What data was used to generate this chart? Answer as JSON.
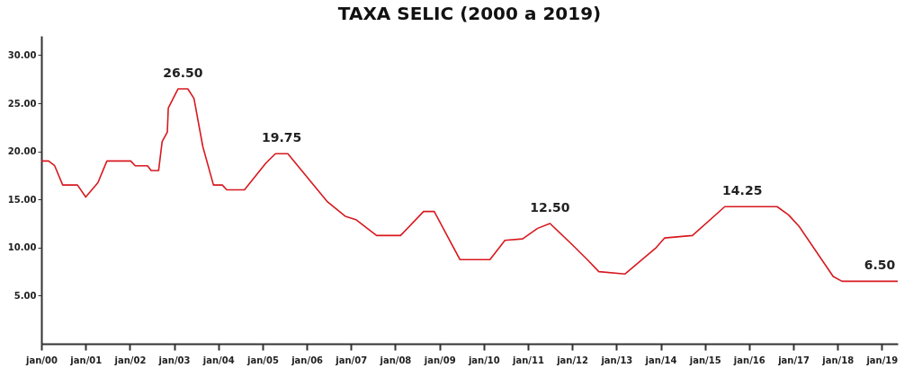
{
  "chart_data": {
    "type": "line",
    "title": "TAXA SELIC (2000 a 2019)",
    "x": [
      "2000-01-01",
      "2000-03-01",
      "2000-04-20",
      "2000-06-25",
      "2000-10-25",
      "2001-01-01",
      "2001-04-12",
      "2001-06-25",
      "2002-01-08",
      "2002-02-14",
      "2002-05-27",
      "2002-06-25",
      "2002-08-26",
      "2002-09-24",
      "2002-11-06",
      "2002-11-14",
      "2003-02-03",
      "2003-04-24",
      "2003-06-14",
      "2003-08-26",
      "2003-11-22",
      "2004-02-03",
      "2004-03-11",
      "2004-08-04",
      "2005-01-26",
      "2005-04-16",
      "2005-07-28",
      "2006-06-21",
      "2006-11-14",
      "2007-02-10",
      "2007-07-31",
      "2008-02-14",
      "2008-08-22",
      "2008-11-18",
      "2009-06-18",
      "2010-02-21",
      "2010-06-25",
      "2010-11-18",
      "2011-03-22",
      "2011-07-02",
      "2011-12-24",
      "2012-05-05",
      "2012-08-08",
      "2013-03-11",
      "2013-11-25",
      "2014-02-03",
      "2014-09-20",
      "2015-06-14",
      "2016-08-19",
      "2016-11-21",
      "2017-02-17",
      "2017-11-25",
      "2018-02-06",
      "2019-05-12"
    ],
    "series": [
      {
        "color": "#d7191f",
        "values": [
          19.0,
          19.0,
          18.5,
          16.5,
          16.5,
          15.25,
          16.75,
          19.0,
          19.0,
          18.5,
          18.5,
          18.0,
          18.0,
          21.0,
          22.0,
          24.5,
          26.5,
          26.5,
          25.5,
          20.5,
          16.5,
          16.5,
          16.0,
          16.0,
          18.75,
          19.75,
          19.75,
          14.75,
          13.25,
          12.9,
          11.25,
          11.25,
          13.75,
          13.75,
          8.75,
          8.75,
          10.75,
          10.9,
          12.0,
          12.5,
          10.4,
          8.75,
          7.5,
          7.25,
          10.0,
          11.0,
          11.25,
          14.25,
          14.25,
          13.4,
          12.2,
          7.0,
          6.5,
          6.5
        ]
      }
    ],
    "xlim": [
      "2000-01-01",
      "2019-05-12"
    ],
    "ylim": [
      0,
      32
    ],
    "xticks": [
      {
        "value": "2000-01-01",
        "label": "jan/00"
      },
      {
        "value": "2001-01-01",
        "label": "jan/01"
      },
      {
        "value": "2002-01-01",
        "label": "jan/02"
      },
      {
        "value": "2003-01-01",
        "label": "jan/03"
      },
      {
        "value": "2004-01-01",
        "label": "jan/04"
      },
      {
        "value": "2005-01-01",
        "label": "jan/05"
      },
      {
        "value": "2006-01-01",
        "label": "jan/06"
      },
      {
        "value": "2007-01-01",
        "label": "jan/07"
      },
      {
        "value": "2008-01-01",
        "label": "jan/08"
      },
      {
        "value": "2009-01-01",
        "label": "jan/09"
      },
      {
        "value": "2010-01-01",
        "label": "jan/10"
      },
      {
        "value": "2011-01-01",
        "label": "jan/11"
      },
      {
        "value": "2012-01-01",
        "label": "jan/12"
      },
      {
        "value": "2013-01-01",
        "label": "jan/13"
      },
      {
        "value": "2014-01-01",
        "label": "jan/14"
      },
      {
        "value": "2015-01-01",
        "label": "jan/15"
      },
      {
        "value": "2016-01-01",
        "label": "jan/16"
      },
      {
        "value": "2017-01-01",
        "label": "jan/17"
      },
      {
        "value": "2018-01-01",
        "label": "jan/18"
      },
      {
        "value": "2019-01-01",
        "label": "jan/19"
      }
    ],
    "yticks": [
      {
        "value": 5,
        "label": "5.00"
      },
      {
        "value": 10,
        "label": "10.00"
      },
      {
        "value": 15,
        "label": "15.00"
      },
      {
        "value": 20,
        "label": "20.00"
      },
      {
        "value": 25,
        "label": "25.00"
      },
      {
        "value": 30,
        "label": "30.00"
      }
    ],
    "annotations": [
      {
        "text": "26.50",
        "x": "2003-03-15",
        "y": 26.5
      },
      {
        "text": "19.75",
        "x": "2005-06-07",
        "y": 19.75
      },
      {
        "text": "12.50",
        "x": "2011-07-02",
        "y": 12.5
      },
      {
        "text": "14.25",
        "x": "2015-11-06",
        "y": 14.25
      },
      {
        "text": "6.50",
        "x": "2018-12-14",
        "y": 6.5
      }
    ],
    "grid": false,
    "marker": "none",
    "line_style": "solid"
  }
}
